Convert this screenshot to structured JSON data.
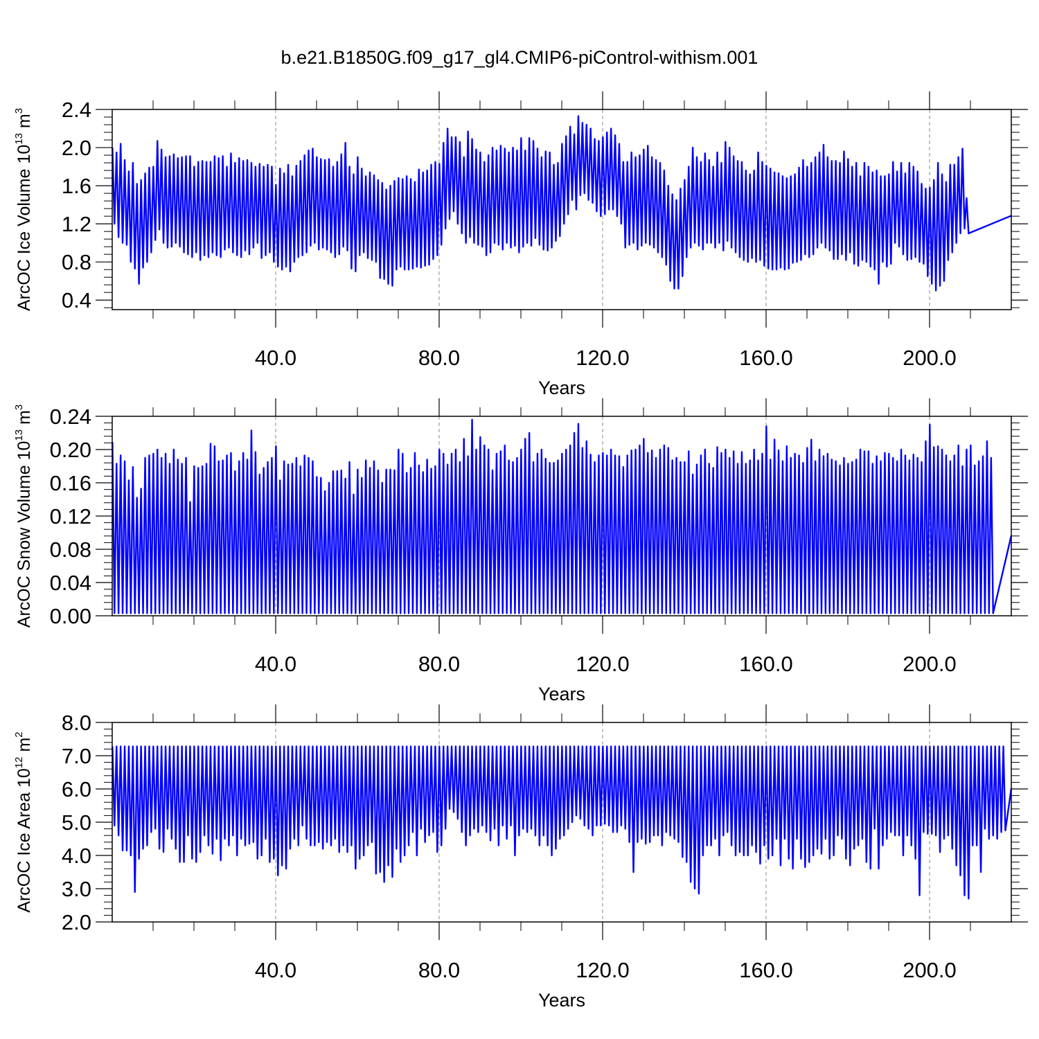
{
  "title": "b.e21.B1850G.f09_g17_gl4.CMIP6-piControl-withism.001",
  "colors": {
    "series": "#0000ff",
    "grid": "#888888",
    "axes": "#000000"
  },
  "chart_data": [
    {
      "type": "line",
      "xlabel": "Years",
      "ylabel_main": "ArcOC Ice Volume 10",
      "ylabel_exp": "13",
      "ylabel_unit": " m",
      "ylabel_unit_exp": "3",
      "xlim": [
        0,
        220
      ],
      "ylim": [
        0.3,
        2.4
      ],
      "xticks": [
        40,
        80,
        120,
        160,
        200
      ],
      "xtick_labels": [
        "40.0",
        "80.0",
        "120.0",
        "160.0",
        "200.0"
      ],
      "yticks": [
        0.4,
        0.8,
        1.2,
        1.6,
        2.0,
        2.4
      ],
      "ytick_labels": [
        "0.4",
        "0.8",
        "1.2",
        "1.6",
        "2.0",
        "2.4"
      ],
      "grid_vertical": true,
      "series": [
        {
          "seasonal": true,
          "annual_max": [
            2.0,
            1.95,
            2.04,
            1.87,
            1.75,
            1.84,
            1.62,
            1.66,
            1.73,
            1.79,
            1.8,
            2.07,
            1.98,
            1.9,
            1.91,
            1.93,
            1.89,
            1.9,
            1.91,
            1.91,
            1.8,
            1.85,
            1.86,
            1.85,
            1.85,
            1.91,
            1.89,
            1.91,
            1.8,
            1.94,
            1.84,
            1.89,
            1.86,
            1.87,
            1.84,
            1.8,
            1.83,
            1.8,
            1.82,
            1.8,
            1.61,
            1.78,
            1.73,
            1.82,
            1.7,
            1.81,
            1.86,
            1.92,
            1.97,
            1.99,
            1.9,
            1.88,
            1.87,
            1.88,
            1.8,
            1.85,
            1.93,
            2.05,
            1.8,
            1.72,
            1.9,
            1.78,
            1.7,
            1.74,
            1.71,
            1.66,
            1.63,
            1.56,
            1.6,
            1.65,
            1.68,
            1.67,
            1.7,
            1.67,
            1.64,
            1.77,
            1.74,
            1.76,
            1.82,
            1.85,
            1.83,
            2.05,
            2.2,
            2.11,
            2.11,
            2.06,
            1.9,
            2.17,
            2.09,
            1.98,
            1.95,
            1.85,
            1.92,
            2.0,
            1.97,
            2.02,
            1.99,
            1.95,
            2.0,
            1.97,
            2.1,
            1.97,
            2.1,
            2.07,
            1.99,
            1.9,
            1.96,
            1.95,
            1.82,
            1.84,
            2.04,
            2.12,
            2.22,
            2.14,
            2.33,
            2.26,
            2.24,
            2.2,
            2.09,
            2.07,
            2.11,
            2.16,
            2.2,
            2.13,
            2.04,
            1.85,
            1.85,
            1.95,
            1.9,
            1.92,
            1.98,
            2.02,
            1.9,
            1.87,
            1.84,
            1.76,
            1.6,
            1.51,
            1.45,
            1.57,
            1.66,
            1.8,
            2.0,
            1.9,
            1.85,
            1.94,
            1.87,
            1.8,
            1.95,
            1.84,
            2.06,
            2.0,
            1.91,
            1.86,
            1.85,
            1.76,
            1.72,
            1.76,
            1.95,
            1.85,
            1.81,
            1.78,
            1.74,
            1.73,
            1.7,
            1.68,
            1.7,
            1.72,
            1.79,
            1.87,
            1.8,
            1.84,
            1.9,
            1.95,
            2.03,
            1.9,
            1.86,
            1.86,
            1.84,
            1.96,
            1.88,
            1.8,
            1.84,
            1.7,
            1.84,
            1.8,
            1.74,
            1.76,
            1.7,
            1.7,
            1.72,
            1.85,
            1.75,
            1.84,
            1.73,
            1.84,
            1.8,
            1.75,
            1.62,
            1.57,
            1.58,
            1.66,
            1.84,
            1.72,
            1.64,
            1.82,
            1.82,
            1.9,
            1.99,
            1.47
          ],
          "annual_min": [
            1.2,
            1.06,
            1.0,
            0.98,
            0.8,
            0.73,
            0.57,
            0.74,
            0.8,
            0.9,
            1.03,
            1.14,
            1.0,
            0.95,
            0.96,
            1.0,
            0.96,
            0.9,
            0.88,
            0.85,
            0.9,
            0.82,
            0.87,
            0.85,
            0.9,
            0.87,
            0.85,
            0.93,
            0.95,
            0.9,
            0.87,
            0.85,
            0.92,
            0.88,
            0.95,
            1.0,
            0.84,
            0.87,
            0.9,
            0.8,
            0.75,
            0.72,
            0.75,
            0.7,
            0.8,
            0.85,
            0.87,
            0.9,
            0.97,
            1.0,
            0.93,
            0.95,
            0.93,
            0.9,
            0.85,
            0.88,
            0.96,
            0.92,
            0.73,
            0.7,
            0.87,
            0.9,
            0.84,
            0.82,
            0.8,
            0.63,
            0.62,
            0.57,
            0.55,
            0.72,
            0.75,
            0.72,
            0.72,
            0.73,
            0.75,
            0.74,
            0.76,
            0.77,
            0.83,
            0.87,
            0.98,
            1.15,
            1.25,
            1.33,
            1.2,
            1.1,
            1.0,
            1.06,
            1.0,
            0.98,
            0.96,
            0.87,
            0.9,
            1.0,
            0.98,
            0.93,
            1.0,
            0.95,
            0.97,
            0.9,
            0.96,
            1.0,
            0.97,
            1.05,
            0.98,
            0.93,
            0.92,
            0.95,
            1.02,
            1.07,
            1.2,
            1.3,
            1.45,
            1.35,
            1.5,
            1.52,
            1.45,
            1.42,
            1.33,
            1.28,
            1.3,
            1.35,
            1.35,
            1.28,
            1.2,
            0.95,
            0.98,
            1.0,
            0.93,
            0.97,
            1.0,
            0.98,
            0.95,
            0.9,
            0.85,
            0.77,
            0.6,
            0.52,
            0.52,
            0.65,
            0.85,
            0.95,
            1.0,
            0.97,
            0.93,
            1.0,
            1.0,
            0.95,
            1.0,
            0.92,
            1.02,
            0.95,
            0.9,
            0.85,
            0.82,
            0.8,
            0.84,
            0.8,
            0.82,
            0.76,
            0.73,
            0.72,
            0.72,
            0.74,
            0.72,
            0.73,
            0.79,
            0.8,
            0.82,
            0.88,
            0.85,
            0.88,
            0.95,
            1.0,
            0.95,
            0.92,
            0.83,
            0.83,
            0.88,
            0.82,
            0.9,
            0.78,
            0.76,
            0.82,
            0.8,
            0.75,
            0.72,
            0.57,
            0.8,
            0.75,
            0.78,
            1.0,
            0.96,
            0.88,
            0.82,
            0.83,
            0.85,
            0.8,
            0.78,
            0.65,
            0.57,
            0.5,
            0.55,
            0.6,
            0.82,
            0.9,
            1.0,
            1.1,
            1.15,
            1.1
          ]
        }
      ]
    },
    {
      "type": "line",
      "xlabel": "Years",
      "ylabel_main": "ArcOC Snow Volume 10",
      "ylabel_exp": "13",
      "ylabel_unit": " m",
      "ylabel_unit_exp": "3",
      "xlim": [
        0,
        220
      ],
      "ylim": [
        0.0,
        0.24
      ],
      "xticks": [
        40,
        80,
        120,
        160,
        200
      ],
      "xtick_labels": [
        "40.0",
        "80.0",
        "120.0",
        "160.0",
        "200.0"
      ],
      "yticks": [
        0.0,
        0.04,
        0.08,
        0.12,
        0.16,
        0.2,
        0.24
      ],
      "ytick_labels": [
        "0.00",
        "0.04",
        "0.08",
        "0.12",
        "0.16",
        "0.20",
        "0.24"
      ],
      "grid_vertical": true,
      "series": [
        {
          "seasonal": true,
          "annual_max": [
            0.209,
            0.183,
            0.193,
            0.186,
            0.163,
            0.179,
            0.142,
            0.153,
            0.19,
            0.193,
            0.195,
            0.2,
            0.19,
            0.195,
            0.183,
            0.2,
            0.188,
            0.183,
            0.19,
            0.137,
            0.18,
            0.178,
            0.18,
            0.183,
            0.207,
            0.204,
            0.186,
            0.187,
            0.193,
            0.196,
            0.174,
            0.186,
            0.196,
            0.188,
            0.223,
            0.197,
            0.17,
            0.178,
            0.185,
            0.19,
            0.204,
            0.163,
            0.186,
            0.182,
            0.183,
            0.19,
            0.18,
            0.193,
            0.19,
            0.186,
            0.167,
            0.166,
            0.15,
            0.16,
            0.174,
            0.174,
            0.175,
            0.165,
            0.185,
            0.146,
            0.176,
            0.166,
            0.187,
            0.178,
            0.186,
            0.175,
            0.16,
            0.176,
            0.176,
            0.175,
            0.2,
            0.195,
            0.172,
            0.178,
            0.196,
            0.181,
            0.173,
            0.188,
            0.177,
            0.18,
            0.2,
            0.195,
            0.182,
            0.195,
            0.2,
            0.185,
            0.213,
            0.192,
            0.236,
            0.2,
            0.215,
            0.205,
            0.2,
            0.175,
            0.195,
            0.198,
            0.205,
            0.187,
            0.185,
            0.19,
            0.2,
            0.213,
            0.22,
            0.185,
            0.195,
            0.2,
            0.189,
            0.184,
            0.184,
            0.187,
            0.195,
            0.2,
            0.205,
            0.22,
            0.231,
            0.202,
            0.21,
            0.194,
            0.185,
            0.193,
            0.196,
            0.193,
            0.2,
            0.193,
            0.192,
            0.179,
            0.193,
            0.199,
            0.2,
            0.205,
            0.213,
            0.196,
            0.199,
            0.19,
            0.2,
            0.205,
            0.202,
            0.187,
            0.19,
            0.185,
            0.185,
            0.198,
            0.17,
            0.182,
            0.193,
            0.2,
            0.183,
            0.178,
            0.203,
            0.196,
            0.2,
            0.19,
            0.198,
            0.183,
            0.197,
            0.183,
            0.187,
            0.2,
            0.187,
            0.195,
            0.228,
            0.188,
            0.212,
            0.199,
            0.186,
            0.204,
            0.19,
            0.195,
            0.193,
            0.184,
            0.202,
            0.212,
            0.186,
            0.2,
            0.192,
            0.195,
            0.188,
            0.186,
            0.181,
            0.19,
            0.183,
            0.185,
            0.188,
            0.2,
            0.198,
            0.198,
            0.183,
            0.192,
            0.186,
            0.196,
            0.195,
            0.19,
            0.186,
            0.2,
            0.193,
            0.187,
            0.194,
            0.19,
            0.185,
            0.21,
            0.23,
            0.203,
            0.204,
            0.2,
            0.193,
            0.186,
            0.193,
            0.205,
            0.18,
            0.2,
            0.205,
            0.181,
            0.186,
            0.192,
            0.21,
            0.19
          ],
          "annual_min": 0.003
        }
      ]
    },
    {
      "type": "line",
      "xlabel": "Years",
      "ylabel_main": "ArcOC Ice Area 10",
      "ylabel_exp": "12",
      "ylabel_unit": " m",
      "ylabel_unit_exp": "2",
      "xlim": [
        0,
        220
      ],
      "ylim": [
        2.0,
        8.0
      ],
      "xticks": [
        40,
        80,
        120,
        160,
        200
      ],
      "xtick_labels": [
        "40.0",
        "80.0",
        "120.0",
        "160.0",
        "200.0"
      ],
      "yticks": [
        2.0,
        3.0,
        4.0,
        5.0,
        6.0,
        7.0,
        8.0
      ],
      "ytick_labels": [
        "2.0",
        "3.0",
        "4.0",
        "5.0",
        "6.0",
        "7.0",
        "8.0"
      ],
      "grid_vertical": true,
      "series": [
        {
          "seasonal": true,
          "annual_max": 7.28,
          "annual_min": [
            4.9,
            4.6,
            4.15,
            4.15,
            4.0,
            2.9,
            3.9,
            4.2,
            4.3,
            4.7,
            4.8,
            4.2,
            4.1,
            4.8,
            4.5,
            4.2,
            3.8,
            3.8,
            4.6,
            3.9,
            3.8,
            4.1,
            4.6,
            4.3,
            4.05,
            4.5,
            3.85,
            4.5,
            4.3,
            4.6,
            4.0,
            4.5,
            4.3,
            4.35,
            4.4,
            3.9,
            4.0,
            4.5,
            3.8,
            3.9,
            3.4,
            3.7,
            3.6,
            4.2,
            4.5,
            4.3,
            4.9,
            4.5,
            4.3,
            4.3,
            4.4,
            4.2,
            4.4,
            4.3,
            4.5,
            4.1,
            4.3,
            4.1,
            4.3,
            3.6,
            3.9,
            4.0,
            4.3,
            4.4,
            3.45,
            3.5,
            3.2,
            3.7,
            3.35,
            4.2,
            3.8,
            4.0,
            4.3,
            4.7,
            4.0,
            4.8,
            4.4,
            4.6,
            4.7,
            4.1,
            4.3,
            4.8,
            5.4,
            5.3,
            5.1,
            4.7,
            4.3,
            4.6,
            4.8,
            4.7,
            4.9,
            4.7,
            4.45,
            4.8,
            4.3,
            4.9,
            4.5,
            4.9,
            4.0,
            4.6,
            4.8,
            4.7,
            4.8,
            4.6,
            4.3,
            4.6,
            4.3,
            4.0,
            4.2,
            4.5,
            4.6,
            4.8,
            5.0,
            5.2,
            5.1,
            4.9,
            4.8,
            4.6,
            4.9,
            4.9,
            4.95,
            4.9,
            4.7,
            4.7,
            4.9,
            4.8,
            4.4,
            3.5,
            4.4,
            4.5,
            4.35,
            4.4,
            4.6,
            4.6,
            4.3,
            4.7,
            4.6,
            4.5,
            4.4,
            3.95,
            3.8,
            3.2,
            3.0,
            2.85,
            4.0,
            4.3,
            4.3,
            4.5,
            4.0,
            4.6,
            4.7,
            4.3,
            4.0,
            4.1,
            4.0,
            4.0,
            4.3,
            4.1,
            3.75,
            4.3,
            3.9,
            4.0,
            4.5,
            3.7,
            4.5,
            3.9,
            3.6,
            4.5,
            3.9,
            3.65,
            3.8,
            4.0,
            4.2,
            4.05,
            4.5,
            3.9,
            4.0,
            4.6,
            4.5,
            3.9,
            3.7,
            4.2,
            4.3,
            4.5,
            3.8,
            3.6,
            4.8,
            3.6,
            4.3,
            4.5,
            4.7,
            4.6,
            4.6,
            4.0,
            4.6,
            4.3,
            3.9,
            2.8,
            4.7,
            4.65,
            4.65,
            4.6,
            4.1,
            4.5,
            4.6,
            4.2,
            3.7,
            3.4,
            2.8,
            2.7,
            4.3,
            4.3,
            3.5,
            4.8,
            4.5,
            4.6,
            4.5,
            4.7,
            4.75
          ]
        }
      ]
    }
  ]
}
